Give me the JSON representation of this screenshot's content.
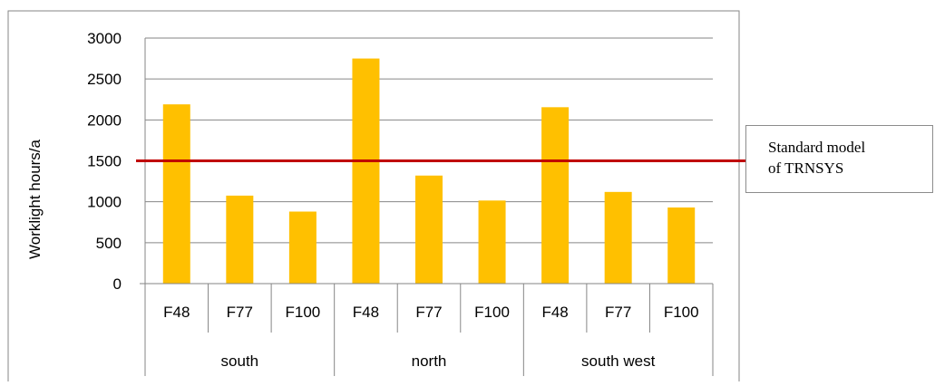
{
  "chart_data": {
    "type": "bar",
    "ylabel": "Worklight hours/a",
    "ylim": [
      0,
      3000
    ],
    "yticks": [
      "0",
      "500",
      "1000",
      "1500",
      "2000",
      "2500",
      "3000"
    ],
    "grid": true,
    "categories": [
      "F48",
      "F77",
      "F100",
      "F48",
      "F77",
      "F100",
      "F48",
      "F77",
      "F100"
    ],
    "groups": [
      "south",
      "north",
      "south west"
    ],
    "values": [
      2190,
      1075,
      880,
      2750,
      1320,
      1015,
      2155,
      1120,
      930
    ],
    "reference_line": {
      "value": 1500,
      "label_lines": [
        "Standard model",
        "of TRNSYS"
      ]
    },
    "colors": {
      "bar": "#FFC000",
      "reference_line": "#C00000",
      "grid": "#868686",
      "frame": "#868686"
    }
  }
}
